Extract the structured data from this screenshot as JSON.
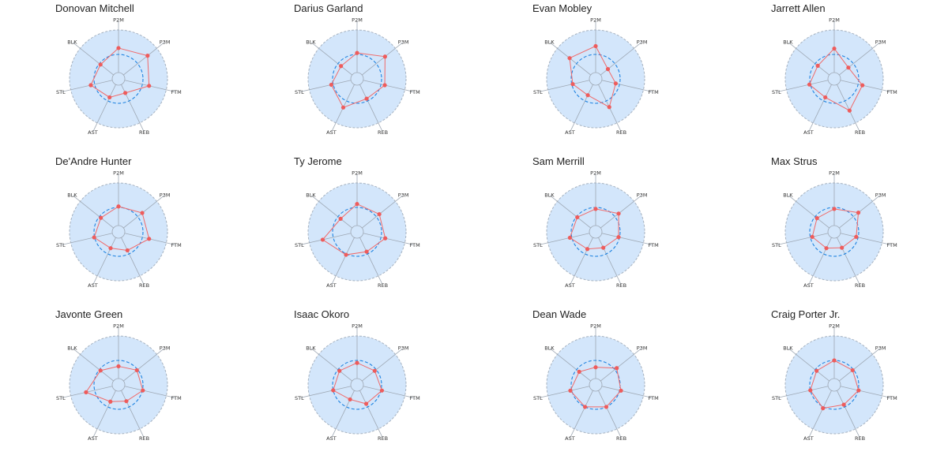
{
  "colors": {
    "panel_fill": "#d3e6fb",
    "outer_ring": "#a6b2c0",
    "spoke": "#9ea8b4",
    "reference_circle": "#1f83e0",
    "player_line": "#f06a6a",
    "player_point": "#ee5c5c"
  },
  "chart_data": [
    {
      "type": "radar",
      "title": "Donovan Mitchell",
      "axes": [
        "P2M",
        "P3M",
        "FTM",
        "REB",
        "AST",
        "STL",
        "BLK"
      ],
      "values": [
        0.63,
        0.76,
        0.64,
        0.32,
        0.42,
        0.58,
        0.47
      ],
      "reference": 0.5,
      "rlim": [
        0,
        1
      ]
    },
    {
      "type": "radar",
      "title": "Darius Garland",
      "axes": [
        "P2M",
        "P3M",
        "FTM",
        "REB",
        "AST",
        "STL",
        "BLK"
      ],
      "values": [
        0.53,
        0.73,
        0.58,
        0.45,
        0.65,
        0.54,
        0.42
      ],
      "reference": 0.5,
      "rlim": [
        0,
        1
      ]
    },
    {
      "type": "radar",
      "title": "Evan Mobley",
      "axes": [
        "P2M",
        "P3M",
        "FTM",
        "REB",
        "AST",
        "STL",
        "BLK"
      ],
      "values": [
        0.67,
        0.32,
        0.42,
        0.64,
        0.37,
        0.48,
        0.68
      ],
      "reference": 0.5,
      "rlim": [
        0,
        1
      ]
    },
    {
      "type": "radar",
      "title": "Jarrett Allen",
      "axes": [
        "P2M",
        "P3M",
        "FTM",
        "REB",
        "AST",
        "STL",
        "BLK"
      ],
      "values": [
        0.62,
        0.37,
        0.59,
        0.72,
        0.42,
        0.52,
        0.43
      ],
      "reference": 0.5,
      "rlim": [
        0,
        1
      ]
    },
    {
      "type": "radar",
      "title": "De'Andre Hunter",
      "axes": [
        "P2M",
        "P3M",
        "FTM",
        "REB",
        "AST",
        "STL",
        "BLK"
      ],
      "values": [
        0.52,
        0.62,
        0.64,
        0.42,
        0.37,
        0.51,
        0.46
      ],
      "reference": 0.5,
      "rlim": [
        0,
        1
      ]
    },
    {
      "type": "radar",
      "title": "Ty Jerome",
      "axes": [
        "P2M",
        "P3M",
        "FTM",
        "REB",
        "AST",
        "STL",
        "BLK"
      ],
      "values": [
        0.57,
        0.58,
        0.59,
        0.45,
        0.52,
        0.72,
        0.43
      ],
      "reference": 0.5,
      "rlim": [
        0,
        1
      ]
    },
    {
      "type": "radar",
      "title": "Sam Merrill",
      "axes": [
        "P2M",
        "P3M",
        "FTM",
        "REB",
        "AST",
        "STL",
        "BLK"
      ],
      "values": [
        0.47,
        0.6,
        0.48,
        0.36,
        0.39,
        0.54,
        0.48
      ],
      "reference": 0.5,
      "rlim": [
        0,
        1
      ]
    },
    {
      "type": "radar",
      "title": "Max Strus",
      "axes": [
        "P2M",
        "P3M",
        "FTM",
        "REB",
        "AST",
        "STL",
        "BLK"
      ],
      "values": [
        0.47,
        0.63,
        0.46,
        0.36,
        0.37,
        0.46,
        0.45
      ],
      "reference": 0.5,
      "rlim": [
        0,
        1
      ]
    },
    {
      "type": "radar",
      "title": "Javonte Green",
      "axes": [
        "P2M",
        "P3M",
        "FTM",
        "REB",
        "AST",
        "STL",
        "BLK"
      ],
      "values": [
        0.38,
        0.48,
        0.51,
        0.37,
        0.38,
        0.68,
        0.47
      ],
      "reference": 0.5,
      "rlim": [
        0,
        1
      ]
    },
    {
      "type": "radar",
      "title": "Isaac Okoro",
      "axes": [
        "P2M",
        "P3M",
        "FTM",
        "REB",
        "AST",
        "STL",
        "BLK"
      ],
      "values": [
        0.45,
        0.46,
        0.52,
        0.43,
        0.33,
        0.5,
        0.46
      ],
      "reference": 0.5,
      "rlim": [
        0,
        1
      ]
    },
    {
      "type": "radar",
      "title": "Dean Wade",
      "axes": [
        "P2M",
        "P3M",
        "FTM",
        "REB",
        "AST",
        "STL",
        "BLK"
      ],
      "values": [
        0.36,
        0.55,
        0.53,
        0.5,
        0.5,
        0.53,
        0.43
      ],
      "reference": 0.5,
      "rlim": [
        0,
        1
      ]
    },
    {
      "type": "radar",
      "title": "Craig Porter Jr.",
      "axes": [
        "P2M",
        "P3M",
        "FTM",
        "REB",
        "AST",
        "STL",
        "BLK"
      ],
      "values": [
        0.5,
        0.48,
        0.51,
        0.45,
        0.53,
        0.5,
        0.46
      ],
      "reference": 0.5,
      "rlim": [
        0,
        1
      ]
    }
  ]
}
